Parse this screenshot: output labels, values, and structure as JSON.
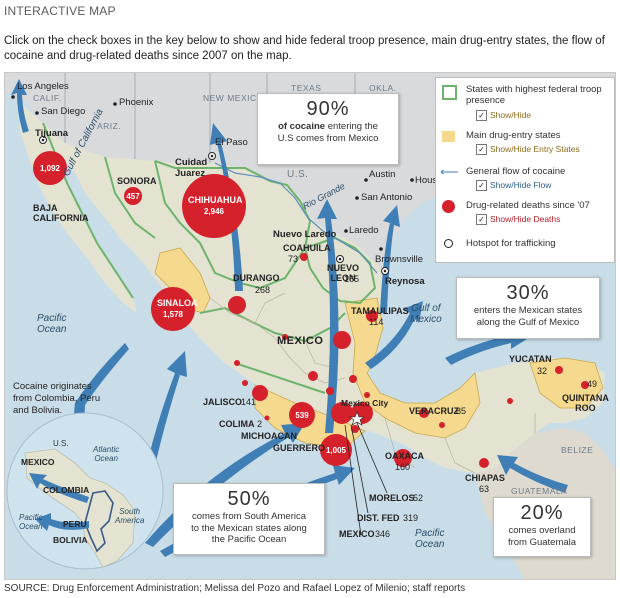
{
  "header": {
    "title": "INTERACTIVE MAP",
    "instructions": "Click on the check boxes in the key below to show and hide federal troop presence, main drug-entry states, the flow of cocaine and drug-related deaths since 2007 on the map."
  },
  "colors": {
    "water": "#c9dde9",
    "land_mexico": "#e4e3d2",
    "land_us": "#d9dadc",
    "entry_states": "#f5d98f",
    "troop_border": "#6db36b",
    "flow": "#3f7fb5",
    "deaths": "#d5212b"
  },
  "legend": {
    "troops_label": "States with highest federal troop presence",
    "troops_toggle": "Show/Hide",
    "entry_label": "Main drug-entry states",
    "entry_toggle": "Show/Hide Entry States",
    "flow_label": "General flow of cocaine",
    "flow_toggle": "Show/Hide Flow",
    "deaths_label": "Drug-related deaths since '07",
    "deaths_toggle": "Show/Hide Deaths",
    "hotspot_label": "Hotspot for trafficking"
  },
  "callouts": {
    "us": {
      "pct": "90%",
      "text1": "of cocaine",
      "text2": "entering the",
      "text3": "U.S comes from Mexico"
    },
    "gulf": {
      "pct": "30%",
      "text1": "enters the Mexican states",
      "text2": "along the Gulf of Mexico"
    },
    "pacific": {
      "pct": "50%",
      "text1": "comes from South America",
      "text2": "to the Mexican states along",
      "text3": "the Pacific Ocean"
    },
    "guatemala": {
      "pct": "20%",
      "text1": "comes overland",
      "text2": "from Guatemala"
    }
  },
  "cities": {
    "los_angeles": "Los Angeles",
    "san_diego": "San Diego",
    "tijuana": "Tijuana",
    "phoenix": "Phoenix",
    "el_paso": "El Paso",
    "cuidad_juarez": "Cuidad\nJuarez",
    "austin": "Austin",
    "houston": "Houston",
    "san_antonio": "San Antonio",
    "nuevo_laredo": "Nuevo Laredo",
    "laredo": "Laredo",
    "brownsville": "Brownsville",
    "reynosa": "Reynosa",
    "mexico_city": "Mexico City"
  },
  "us_states": {
    "calif": "CALIF.",
    "ariz": "ARIZ.",
    "new_mexico": "NEW MEXICO",
    "texas": "TEXAS",
    "okla": "OKLA.",
    "us": "U.S."
  },
  "places": {
    "mexico": "MEXICO",
    "belize": "BELIZE",
    "guatemala": "GUATEMALA",
    "gulf_of_california": "Gulf of California",
    "rio_grande": "Rio Grande",
    "pacific_ocean_1": "Pacific\nOcean",
    "pacific_ocean_2": "Pacific\nOcean",
    "gulf_of_mexico": "Gulf of\nMexico"
  },
  "states": {
    "baja": "BAJA\nCALIFORNIA",
    "sonora": "SONORA",
    "chihuahua": "CHIHUAHUA",
    "coahuila": "COAHUILA",
    "nuevo_leon": "NUEVO\nLEON",
    "tamaulipas": "TAMAULIPAS",
    "durango": "DURANGO",
    "sinaloa": "SINALOA",
    "jalisco": "JALISCO",
    "colima": "COLIMA",
    "michoacan": "MICHOACAN",
    "guerrero": "GUERRERO",
    "oaxaca": "OAXACA",
    "chiapas": "CHIAPAS",
    "veracruz": "VERACRUZ",
    "yucatan": "YUCATAN",
    "quintana_roo": "QUINTANA\nROO",
    "morelos": "MORELOS",
    "dist_fed": "DIST. FED",
    "mexico_state": "MEXICO"
  },
  "deaths": {
    "baja": "1,092",
    "sonora": "457",
    "chihuahua": "2,946",
    "coahuila": "73",
    "nuevo_leon": "165",
    "tamaulipas": "114",
    "durango": "268",
    "sinaloa": "1,578",
    "jalisco": "141",
    "colima": "2",
    "michoacan": "539",
    "guerrero": "1,005",
    "oaxaca": "160",
    "chiapas": "63",
    "veracruz": "85",
    "yucatan": "32",
    "quintana_roo": "49",
    "morelos": "52",
    "dist_fed": "319",
    "mexico_state": "346"
  },
  "inset": {
    "text": "Cocaine originates from Colombia, Peru and Bolivia.",
    "us": "U.S.",
    "atlantic": "Atlantic\nOcean",
    "mexico": "MEXICO",
    "colombia": "COLOMBIA",
    "pacific": "Pacific\nOcean",
    "peru": "PERU",
    "bolivia": "BOLIVIA",
    "south_america": "South\nAmerica"
  },
  "source": "SOURCE: Drug Enforcement Administration; Melissa del Pozo and Rafael Lopez of Milenio; staff reports"
}
